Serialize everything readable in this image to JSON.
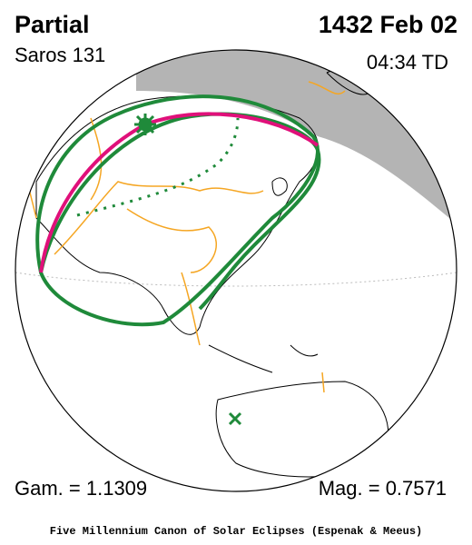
{
  "header": {
    "title": "Partial",
    "saros": "Saros 131",
    "date": "1432 Feb 02",
    "time": "04:34 TD"
  },
  "footer": {
    "gamma": "Gam. = 1.1309",
    "magnitude": "Mag. = 0.7571",
    "credit": "Five Millennium Canon of Solar Eclipses (Espenak & Meeus)"
  }
}
